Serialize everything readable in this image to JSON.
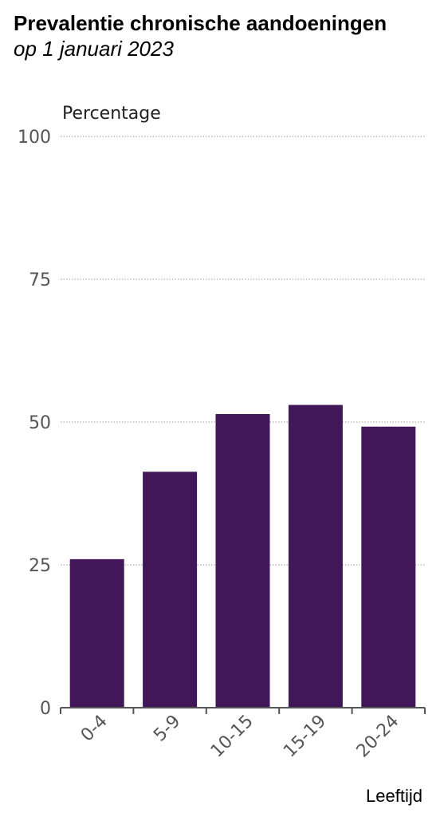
{
  "chart_data": {
    "type": "bar",
    "title": "Prevalentie chronische aandoeningen",
    "subtitle": "op 1 januari 2023",
    "ylabel": "Percentage",
    "xlabel": "Leeftijd",
    "categories": [
      "0-4",
      "5-9",
      "10-15",
      "15-19",
      "20-24"
    ],
    "values": [
      26,
      41.3,
      51.4,
      53,
      49.2
    ],
    "ylim": [
      0,
      100
    ],
    "yticks": [
      "0",
      "25",
      "50",
      "75",
      "100"
    ],
    "grid": true,
    "bar_color": "#42175a"
  }
}
